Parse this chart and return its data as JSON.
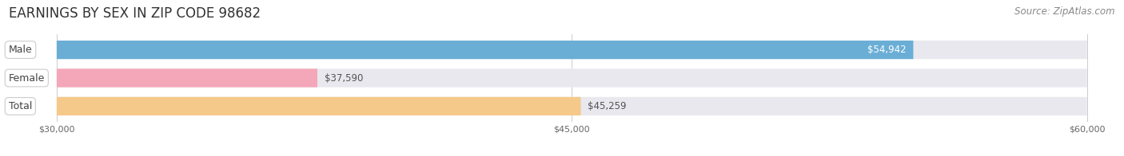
{
  "title": "EARNINGS BY SEX IN ZIP CODE 98682",
  "source": "Source: ZipAtlas.com",
  "categories": [
    "Male",
    "Female",
    "Total"
  ],
  "values": [
    54942,
    37590,
    45259
  ],
  "labels": [
    "$54,942",
    "$37,590",
    "$45,259"
  ],
  "bar_colors": [
    "#6aaed6",
    "#f4a7b9",
    "#f5c98a"
  ],
  "track_color": "#e8e8ee",
  "xmin": 30000,
  "xmax": 60000,
  "xticks": [
    30000,
    45000,
    60000
  ],
  "xticklabels": [
    "$30,000",
    "$45,000",
    "$60,000"
  ],
  "figure_background": "#ffffff",
  "bar_height": 0.62,
  "title_fontsize": 12,
  "source_fontsize": 8.5,
  "label_fontsize": 8.5,
  "category_fontsize": 9
}
